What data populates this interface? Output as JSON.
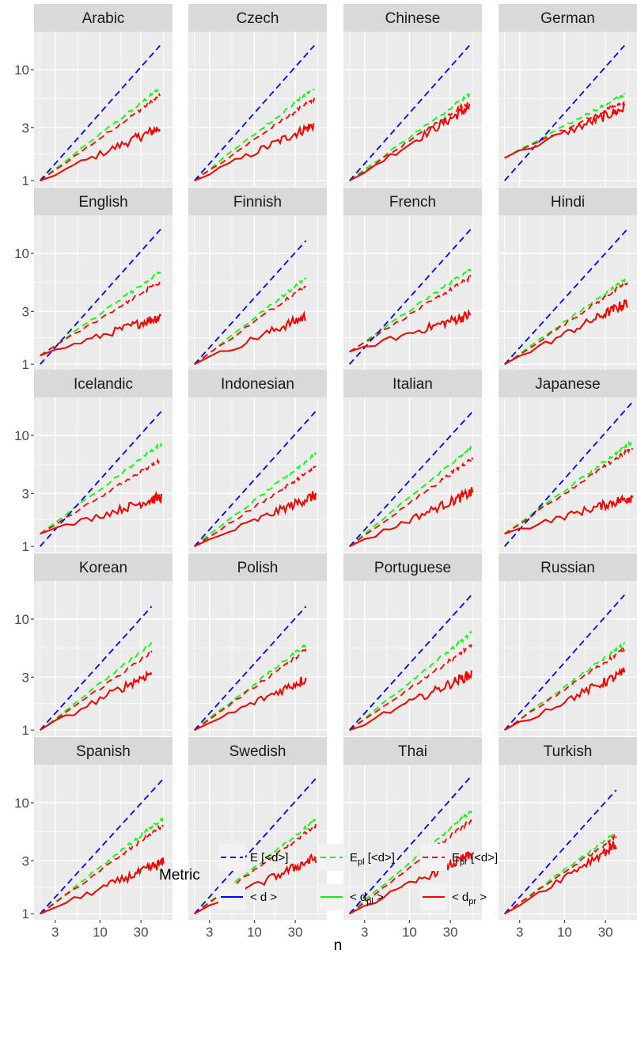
{
  "chart_data": {
    "type": "line",
    "title": "",
    "xlabel": "n",
    "ylabel": "",
    "x_scale": "log",
    "y_scale": "log",
    "xlim": [
      1.7,
      70
    ],
    "ylim": [
      0.88,
      22
    ],
    "x_ticks": [
      3,
      10,
      30
    ],
    "x_tick_labels": [
      "3",
      "10",
      "30"
    ],
    "y_ticks": [
      1,
      3,
      10
    ],
    "y_tick_labels": [
      "1",
      "3",
      "10"
    ],
    "grid": true,
    "legend": {
      "position": "bottom",
      "title": "Metric",
      "entries": [
        {
          "key": "E",
          "style": "dashed",
          "color": "#0000ff",
          "label_main": "E [<d>]",
          "label_parts": [
            [
              "E",
              ""
            ],
            [
              " [<d>]",
              ""
            ]
          ]
        },
        {
          "key": "Epl",
          "style": "dashed",
          "color": "#00ff00",
          "label_main": "Epl [<d>]",
          "label_parts": [
            [
              "E",
              ""
            ],
            [
              "pl",
              "sub"
            ],
            [
              " [<d>]",
              ""
            ]
          ]
        },
        {
          "key": "Epr",
          "style": "dashed",
          "color": "#ff0000",
          "label_main": "Epr [<d>]",
          "label_parts": [
            [
              "E",
              ""
            ],
            [
              "pr",
              "sub"
            ],
            [
              " [<d>]",
              ""
            ]
          ]
        },
        {
          "key": "d",
          "style": "solid",
          "color": "#0000ff",
          "label_main": "< d >",
          "label_parts": [
            [
              "< d >",
              ""
            ]
          ]
        },
        {
          "key": "dpl",
          "style": "solid",
          "color": "#00ff00",
          "label_main": "< dpl >",
          "label_parts": [
            [
              "< d",
              ""
            ],
            [
              "pl",
              "sub"
            ],
            [
              " >",
              ""
            ]
          ]
        },
        {
          "key": "dpr",
          "style": "solid",
          "color": "#ff0000",
          "label_main": "< dpr >",
          "label_parts": [
            [
              "< d",
              ""
            ],
            [
              "pr",
              "sub"
            ],
            [
              " >",
              ""
            ]
          ]
        }
      ]
    },
    "series_description": "For each language: E = expected value (blue dashed), Epl (green dashed), Epr (red dashed), < d > (blue solid), < dpl > (green solid), < dpr > (red solid). Solid lines largely overlap.",
    "panels": [
      {
        "language": "Arabic",
        "n_max": 50,
        "e_end": 16.5,
        "epl_end": 6.8,
        "epr_end": 5.8,
        "d_start": 1.0,
        "d_end": 3.0
      },
      {
        "language": "Czech",
        "n_max": 50,
        "e_end": 16.5,
        "epl_end": 6.8,
        "epr_end": 5.5,
        "d_start": 1.0,
        "d_end": 3.2
      },
      {
        "language": "Chinese",
        "n_max": 50,
        "e_end": 16.5,
        "epl_end": 6.0,
        "epr_end": 5.2,
        "d_start": 1.0,
        "d_end": 4.6
      },
      {
        "language": "German",
        "n_max": 50,
        "e_end": 16.5,
        "epl_end": 6.0,
        "epr_end": 5.2,
        "d_start": 1.6,
        "d_end": 4.5
      },
      {
        "language": "English",
        "n_max": 51,
        "e_end": 16.5,
        "epl_end": 6.8,
        "epr_end": 5.6,
        "d_start": 1.2,
        "d_end": 2.7
      },
      {
        "language": "Finnish",
        "n_max": 40,
        "e_end": 13.0,
        "epl_end": 6.0,
        "epr_end": 5.2,
        "d_start": 1.0,
        "d_end": 2.7
      },
      {
        "language": "French",
        "n_max": 52,
        "e_end": 16.5,
        "epl_end": 7.3,
        "epr_end": 6.1,
        "d_start": 1.3,
        "d_end": 2.8
      },
      {
        "language": "Hindi",
        "n_max": 54,
        "e_end": 16.5,
        "epl_end": 6.0,
        "epr_end": 5.5,
        "d_start": 1.0,
        "d_end": 3.6
      },
      {
        "language": "Icelandic",
        "n_max": 52,
        "e_end": 16.5,
        "epl_end": 8.5,
        "epr_end": 6.1,
        "d_start": 1.3,
        "d_end": 2.8
      },
      {
        "language": "Indonesian",
        "n_max": 52,
        "e_end": 16.5,
        "epl_end": 6.8,
        "epr_end": 5.2,
        "d_start": 1.0,
        "d_end": 2.9
      },
      {
        "language": "Italian",
        "n_max": 55,
        "e_end": 16.5,
        "epl_end": 8.0,
        "epr_end": 6.3,
        "d_start": 1.0,
        "d_end": 3.1
      },
      {
        "language": "Japanese",
        "n_max": 62,
        "e_end": 20.0,
        "epl_end": 8.8,
        "epr_end": 7.8,
        "d_start": 1.3,
        "d_end": 2.8
      },
      {
        "language": "Korean",
        "n_max": 40,
        "e_end": 13.0,
        "epl_end": 6.0,
        "epr_end": 5.0,
        "d_start": 1.0,
        "d_end": 3.3
      },
      {
        "language": "Polish",
        "n_max": 40,
        "e_end": 13.0,
        "epl_end": 5.9,
        "epr_end": 5.3,
        "d_start": 1.0,
        "d_end": 2.9
      },
      {
        "language": "Portuguese",
        "n_max": 53,
        "e_end": 16.5,
        "epl_end": 7.5,
        "epr_end": 5.8,
        "d_start": 1.0,
        "d_end": 3.2
      },
      {
        "language": "Russian",
        "n_max": 50,
        "e_end": 16.5,
        "epl_end": 6.0,
        "epr_end": 5.4,
        "d_start": 1.0,
        "d_end": 3.3
      },
      {
        "language": "Spanish",
        "n_max": 55,
        "e_end": 16.5,
        "epl_end": 7.3,
        "epr_end": 6.3,
        "d_start": 1.0,
        "d_end": 2.9
      },
      {
        "language": "Swedish",
        "n_max": 52,
        "e_end": 16.5,
        "epl_end": 7.0,
        "epr_end": 6.2,
        "d_start": 1.0,
        "d_end": 3.2
      },
      {
        "language": "Thai",
        "n_max": 53,
        "e_end": 17.5,
        "epl_end": 8.5,
        "epr_end": 7.0,
        "d_start": 1.0,
        "d_end": 3.4
      },
      {
        "language": "Turkish",
        "n_max": 40,
        "e_end": 13.0,
        "epl_end": 5.4,
        "epr_end": 5.0,
        "d_start": 1.0,
        "d_end": 4.2
      }
    ]
  }
}
